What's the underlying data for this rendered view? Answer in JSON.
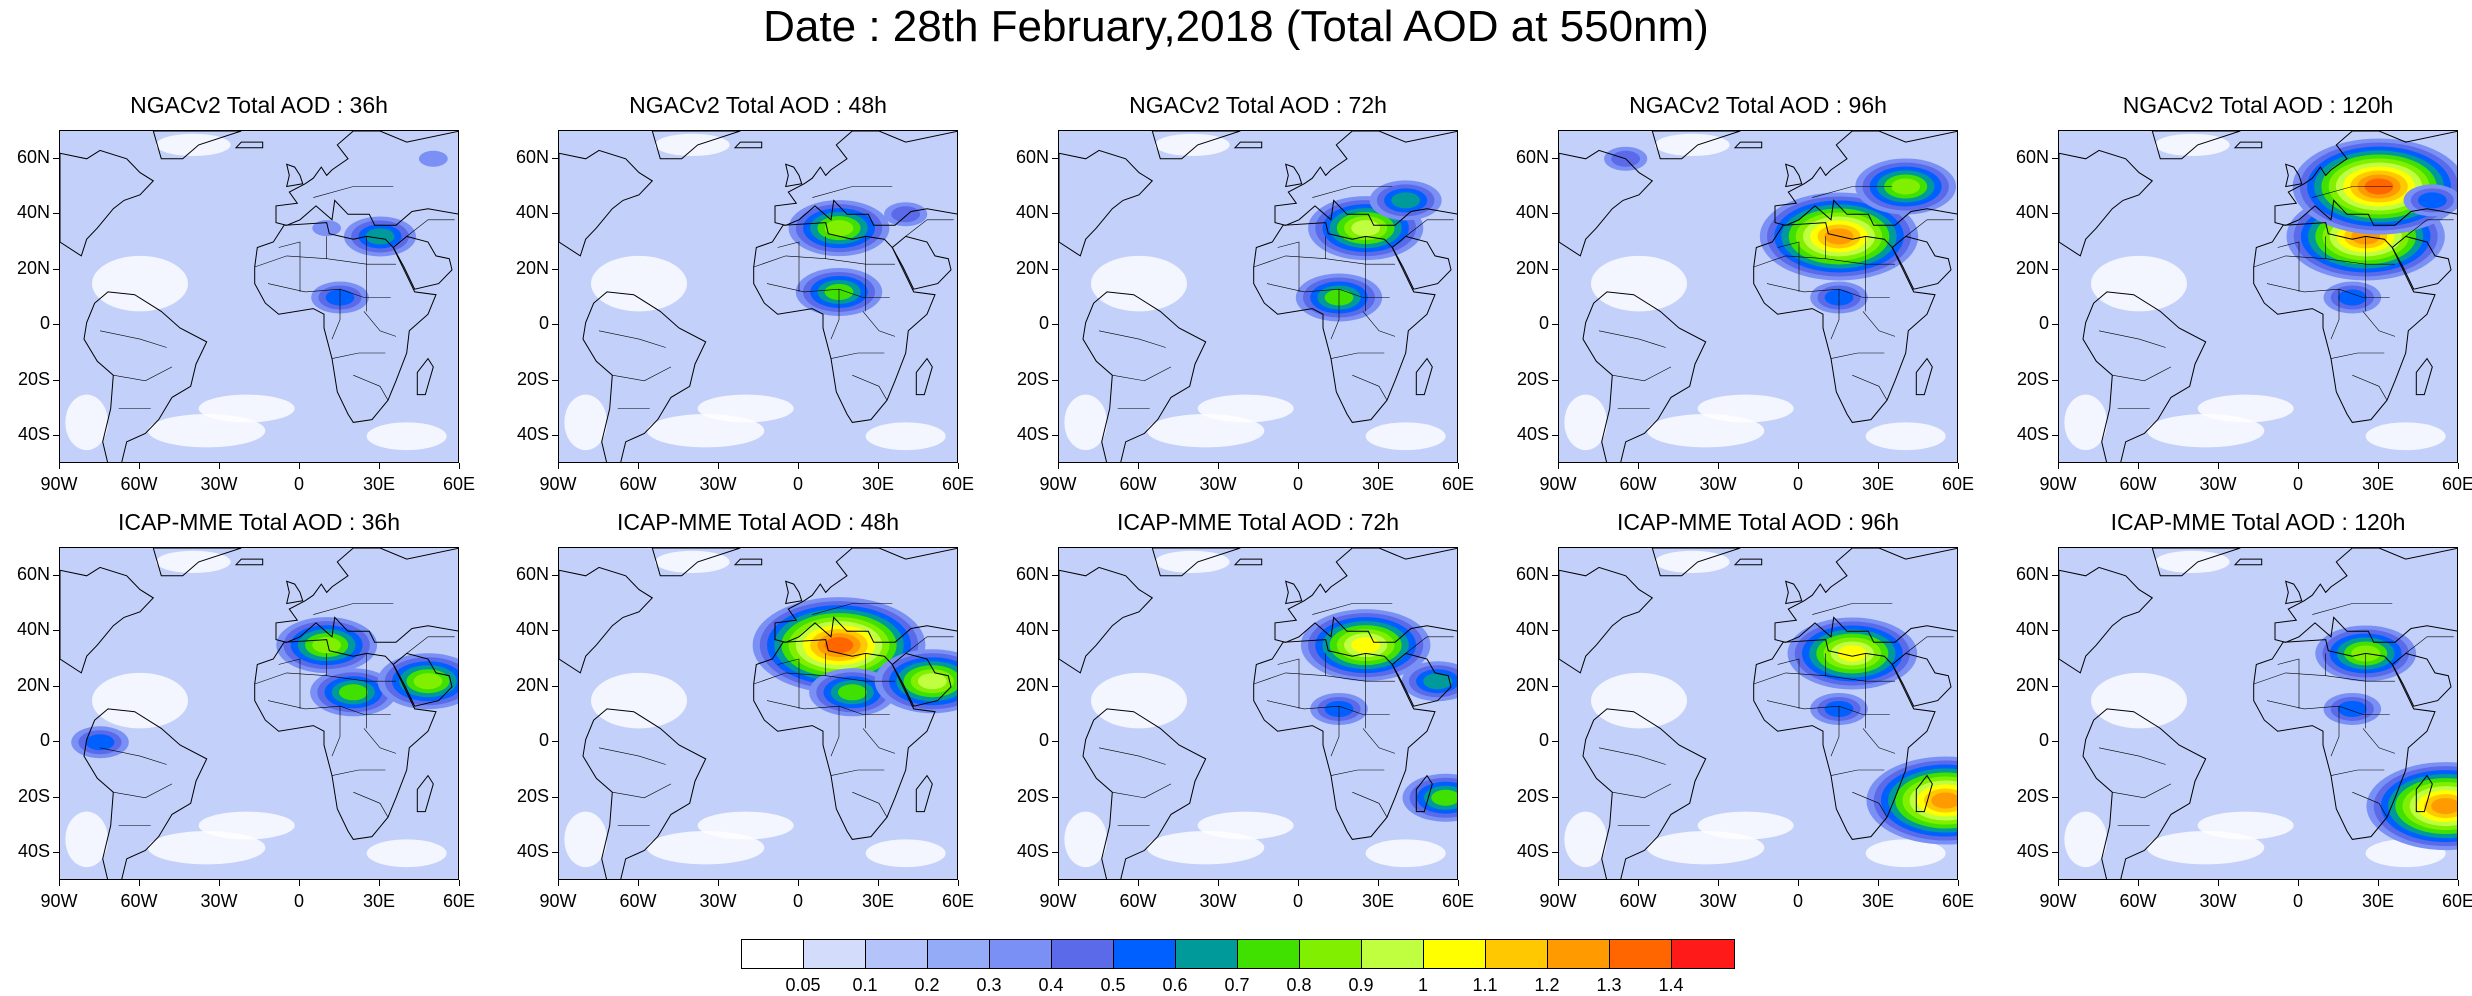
{
  "title": "Date : 28th February,2018 (Total AOD at 550nm)",
  "panels": [
    {
      "title": "NGACv2 Total AOD : 36h",
      "model": "NGACv2",
      "lead_hours": 36,
      "plumes": [
        {
          "lon": 15,
          "lat": 10,
          "level": 6
        },
        {
          "lon": 30,
          "lat": 32,
          "level": 7
        },
        {
          "lon": 10,
          "lat": 35,
          "level": 4
        },
        {
          "lon": 50,
          "lat": 60,
          "level": 4
        }
      ]
    },
    {
      "title": "NGACv2 Total AOD : 48h",
      "model": "NGACv2",
      "lead_hours": 48,
      "plumes": [
        {
          "lon": 15,
          "lat": 12,
          "level": 8
        },
        {
          "lon": 15,
          "lat": 35,
          "level": 9
        },
        {
          "lon": 40,
          "lat": 40,
          "level": 5
        }
      ]
    },
    {
      "title": "NGACv2 Total AOD : 72h",
      "model": "NGACv2",
      "lead_hours": 72,
      "plumes": [
        {
          "lon": 15,
          "lat": 10,
          "level": 8
        },
        {
          "lon": 25,
          "lat": 35,
          "level": 10
        },
        {
          "lon": 40,
          "lat": 45,
          "level": 7
        }
      ]
    },
    {
      "title": "NGACv2 Total AOD : 96h",
      "model": "NGACv2",
      "lead_hours": 96,
      "plumes": [
        {
          "lon": 15,
          "lat": 10,
          "level": 6
        },
        {
          "lon": 15,
          "lat": 32,
          "level": 13
        },
        {
          "lon": 40,
          "lat": 50,
          "level": 9
        },
        {
          "lon": -65,
          "lat": 60,
          "level": 5
        }
      ]
    },
    {
      "title": "NGACv2 Total AOD : 120h",
      "model": "NGACv2",
      "lead_hours": 120,
      "plumes": [
        {
          "lon": 20,
          "lat": 10,
          "level": 6
        },
        {
          "lon": 25,
          "lat": 32,
          "level": 13
        },
        {
          "lon": 30,
          "lat": 50,
          "level": 14
        },
        {
          "lon": 50,
          "lat": 45,
          "level": 6
        }
      ]
    },
    {
      "title": "ICAP-MME Total AOD : 36h",
      "model": "ICAP-MME",
      "lead_hours": 36,
      "plumes": [
        {
          "lon": 10,
          "lat": 35,
          "level": 9
        },
        {
          "lon": 20,
          "lat": 18,
          "level": 8
        },
        {
          "lon": 48,
          "lat": 22,
          "level": 9
        },
        {
          "lon": -75,
          "lat": 0,
          "level": 6
        }
      ]
    },
    {
      "title": "ICAP-MME Total AOD : 48h",
      "model": "ICAP-MME",
      "lead_hours": 48,
      "plumes": [
        {
          "lon": 15,
          "lat": 35,
          "level": 14
        },
        {
          "lon": 20,
          "lat": 18,
          "level": 8
        },
        {
          "lon": 50,
          "lat": 22,
          "level": 10
        }
      ]
    },
    {
      "title": "ICAP-MME Total AOD : 72h",
      "model": "ICAP-MME",
      "lead_hours": 72,
      "plumes": [
        {
          "lon": 25,
          "lat": 35,
          "level": 11
        },
        {
          "lon": 15,
          "lat": 12,
          "level": 6
        },
        {
          "lon": 52,
          "lat": 22,
          "level": 7
        },
        {
          "lon": 55,
          "lat": -20,
          "level": 8
        }
      ]
    },
    {
      "title": "ICAP-MME Total AOD : 96h",
      "model": "ICAP-MME",
      "lead_hours": 96,
      "plumes": [
        {
          "lon": 20,
          "lat": 32,
          "level": 11
        },
        {
          "lon": 15,
          "lat": 12,
          "level": 6
        },
        {
          "lon": 55,
          "lat": -21,
          "level": 13
        }
      ]
    },
    {
      "title": "ICAP-MME Total AOD : 120h",
      "model": "ICAP-MME",
      "lead_hours": 120,
      "plumes": [
        {
          "lon": 25,
          "lat": 32,
          "level": 9
        },
        {
          "lon": 20,
          "lat": 12,
          "level": 6
        },
        {
          "lon": 55,
          "lat": -23,
          "level": 13
        }
      ]
    }
  ],
  "map_extent": {
    "lon_min": -90,
    "lon_max": 60,
    "lat_min": -50,
    "lat_max": 70
  },
  "lat_tick_labels": [
    "60N",
    "40N",
    "20N",
    "0",
    "20S",
    "40S"
  ],
  "lat_tick_values": [
    60,
    40,
    20,
    0,
    -20,
    -40
  ],
  "lon_tick_labels": [
    "90W",
    "60W",
    "30W",
    "0",
    "30E",
    "60E"
  ],
  "lon_tick_values": [
    -90,
    -60,
    -30,
    0,
    30,
    60
  ],
  "colorbar": {
    "labels": [
      "0.05",
      "0.1",
      "0.2",
      "0.3",
      "0.4",
      "0.5",
      "0.6",
      "0.7",
      "0.8",
      "0.9",
      "1",
      "1.1",
      "1.2",
      "1.3",
      "1.4"
    ],
    "colors": [
      "#ffffff",
      "#d4dcfb",
      "#b4c4fa",
      "#94acf8",
      "#7a90f4",
      "#5a6ae8",
      "#0060ff",
      "#009a9a",
      "#40e000",
      "#80f000",
      "#c0ff40",
      "#ffff00",
      "#ffc800",
      "#ff9a00",
      "#ff6600",
      "#ff1a1a"
    ]
  },
  "colors": {
    "background_field": "#c3d0fa",
    "clean_air": "#ffffff",
    "coastline": "#000000"
  }
}
